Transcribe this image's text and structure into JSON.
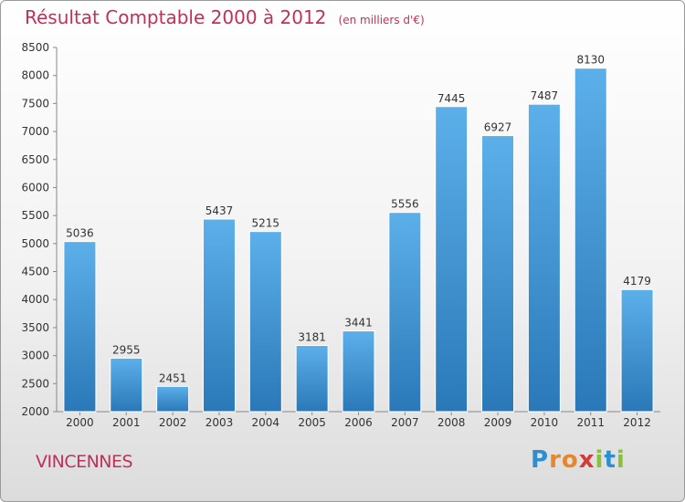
{
  "chart_data": {
    "type": "bar",
    "title": "Résultat Comptable 2000 à 2012",
    "subtitle": "(en milliers d'€)",
    "categories": [
      "2000",
      "2001",
      "2002",
      "2003",
      "2004",
      "2005",
      "2006",
      "2007",
      "2008",
      "2009",
      "2010",
      "2011",
      "2012"
    ],
    "values": [
      5036,
      2955,
      2451,
      5437,
      5215,
      3181,
      3441,
      5556,
      7445,
      6927,
      7487,
      8130,
      4179
    ],
    "ylim": [
      2000,
      8500
    ],
    "yticks": [
      2000,
      2500,
      3000,
      3500,
      4000,
      4500,
      5000,
      5500,
      6000,
      6500,
      7000,
      7500,
      8000,
      8500
    ],
    "xlabel": "",
    "ylabel": "",
    "grid": false,
    "bar_color": "#4aa0dc"
  },
  "footer": {
    "city": "VINCENNES",
    "logo_letters": [
      "P",
      "r",
      "o",
      "x",
      "i",
      "t",
      "i"
    ],
    "logo_colors": [
      "#2e8fd0",
      "#e8862a",
      "#e8862a",
      "#d43a3a",
      "#8abf3a",
      "#2e8fd0",
      "#8abf3a"
    ]
  }
}
